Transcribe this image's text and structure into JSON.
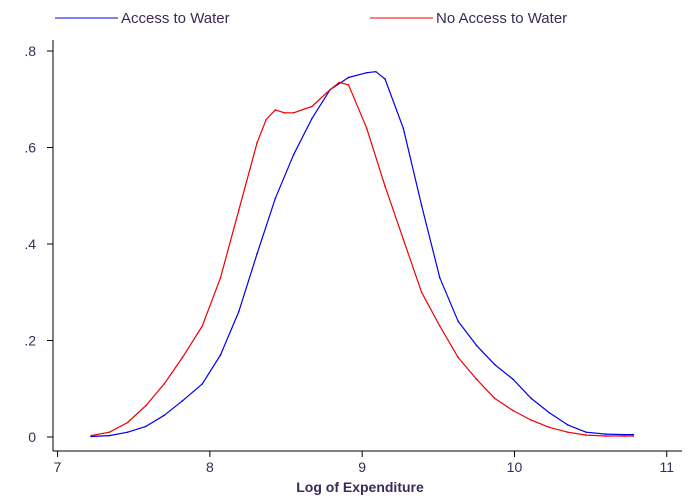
{
  "chart_data": {
    "type": "line",
    "title": "",
    "xlabel": "Log of Expenditure",
    "ylabel": "",
    "xlim": [
      6.97,
      11.1
    ],
    "ylim": [
      -0.01,
      0.82
    ],
    "xticks": [
      7,
      8,
      9,
      10,
      11
    ],
    "yticks": [
      0,
      0.2,
      0.4,
      0.6,
      0.8
    ],
    "ytick_labels": [
      "0",
      ".2",
      ".4",
      ".6",
      ".8"
    ],
    "grid": false,
    "legend_position": "top",
    "series": [
      {
        "name": "Access to Water",
        "color": "#0000ee",
        "x": [
          7.22,
          7.34,
          7.46,
          7.58,
          7.7,
          7.82,
          7.95,
          8.07,
          8.19,
          8.31,
          8.43,
          8.55,
          8.67,
          8.79,
          8.91,
          9.03,
          9.09,
          9.15,
          9.27,
          9.39,
          9.51,
          9.63,
          9.75,
          9.87,
          9.99,
          10.11,
          10.23,
          10.35,
          10.47,
          10.6,
          10.72,
          10.78
        ],
        "y": [
          0.001,
          0.003,
          0.01,
          0.022,
          0.045,
          0.075,
          0.11,
          0.17,
          0.26,
          0.38,
          0.495,
          0.585,
          0.66,
          0.72,
          0.745,
          0.755,
          0.757,
          0.742,
          0.64,
          0.48,
          0.33,
          0.24,
          0.19,
          0.15,
          0.12,
          0.08,
          0.05,
          0.025,
          0.01,
          0.006,
          0.005,
          0.005
        ]
      },
      {
        "name": "No Access to Water",
        "color": "#ee0000",
        "x": [
          7.22,
          7.34,
          7.46,
          7.58,
          7.7,
          7.82,
          7.95,
          8.07,
          8.19,
          8.31,
          8.37,
          8.43,
          8.49,
          8.55,
          8.67,
          8.79,
          8.85,
          8.91,
          9.03,
          9.15,
          9.27,
          9.39,
          9.51,
          9.63,
          9.75,
          9.87,
          9.99,
          10.11,
          10.23,
          10.35,
          10.47,
          10.6,
          10.72,
          10.78
        ],
        "y": [
          0.003,
          0.01,
          0.03,
          0.065,
          0.11,
          0.165,
          0.23,
          0.33,
          0.47,
          0.61,
          0.658,
          0.678,
          0.672,
          0.672,
          0.685,
          0.72,
          0.735,
          0.73,
          0.64,
          0.52,
          0.41,
          0.3,
          0.23,
          0.165,
          0.12,
          0.08,
          0.055,
          0.035,
          0.02,
          0.01,
          0.004,
          0.002,
          0.002,
          0.002
        ]
      }
    ]
  }
}
